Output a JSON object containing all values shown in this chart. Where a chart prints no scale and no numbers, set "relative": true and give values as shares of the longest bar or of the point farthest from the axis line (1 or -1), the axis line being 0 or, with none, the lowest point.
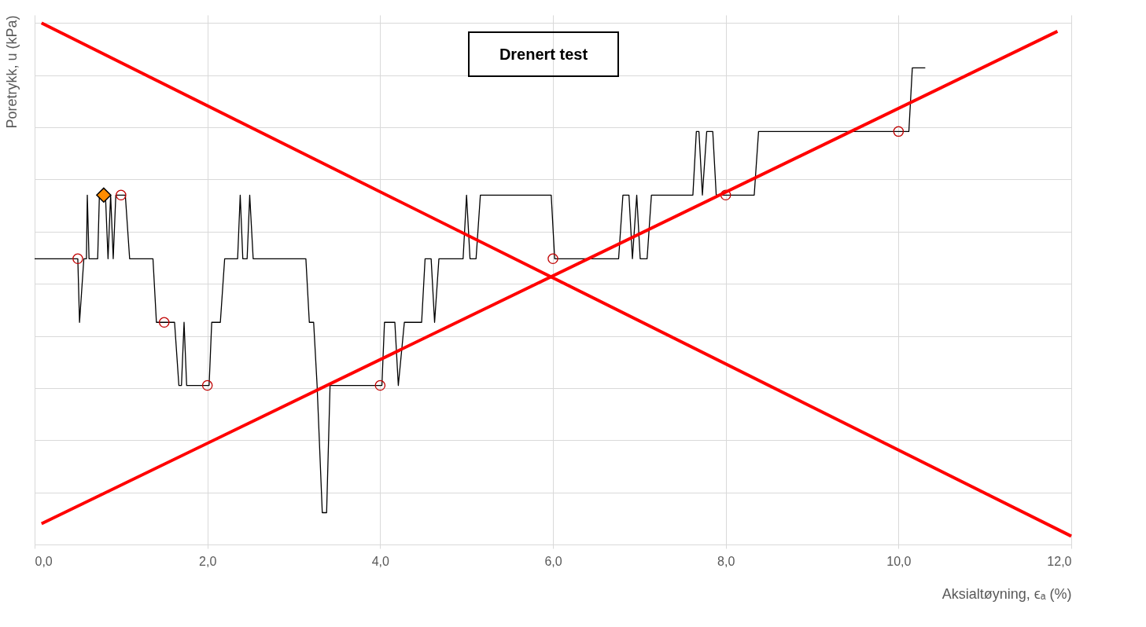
{
  "chart_data": {
    "type": "line",
    "xlabel": "Aksialtøyning, ϵₐ (%)",
    "ylabel": "Poretrykk, u (kPa)",
    "relative": true,
    "xlim": [
      0,
      12
    ],
    "xticks": [
      {
        "value": 0,
        "label": "0,0"
      },
      {
        "value": 2,
        "label": "2,0"
      },
      {
        "value": 4,
        "label": "4,0"
      },
      {
        "value": 6,
        "label": "6,0"
      },
      {
        "value": 8,
        "label": "8,0"
      },
      {
        "value": 10,
        "label": "10,0"
      },
      {
        "value": 12,
        "label": "12,0"
      }
    ],
    "grid": true,
    "annotations": [
      "Drenert test"
    ],
    "series": [
      {
        "color": "#000000",
        "marker": "none",
        "x": [
          0,
          0.5,
          0.52,
          0.57,
          0.6,
          0.61,
          0.63,
          0.73,
          0.75,
          0.82,
          0.85,
          0.88,
          0.91,
          0.94,
          1.05,
          1.1,
          1.37,
          1.41,
          1.62,
          1.67,
          1.7,
          1.73,
          1.76,
          2.02,
          2.05,
          2.15,
          2.2,
          2.35,
          2.38,
          2.41,
          2.46,
          2.49,
          2.53,
          3.14,
          3.18,
          3.23,
          3.27,
          3.33,
          3.38,
          3.42,
          4.02,
          4.05,
          4.17,
          4.21,
          4.28,
          4.48,
          4.52,
          4.59,
          4.63,
          4.68,
          4.96,
          5.0,
          5.04,
          5.11,
          5.16,
          5.98,
          6.02,
          6.76,
          6.81,
          6.88,
          6.92,
          6.97,
          7.01,
          7.09,
          7.14,
          7.62,
          7.66,
          7.69,
          7.73,
          7.78,
          7.85,
          7.89,
          8.33,
          8.38,
          10.12,
          10.16,
          10.31
        ],
        "values": [
          0.548,
          0.548,
          0.426,
          0.548,
          0.548,
          0.67,
          0.548,
          0.548,
          0.67,
          0.67,
          0.548,
          0.67,
          0.548,
          0.67,
          0.67,
          0.548,
          0.548,
          0.426,
          0.426,
          0.305,
          0.305,
          0.426,
          0.305,
          0.305,
          0.426,
          0.426,
          0.548,
          0.548,
          0.67,
          0.548,
          0.548,
          0.67,
          0.548,
          0.548,
          0.426,
          0.426,
          0.305,
          0.061,
          0.061,
          0.305,
          0.305,
          0.426,
          0.426,
          0.305,
          0.426,
          0.426,
          0.548,
          0.548,
          0.426,
          0.548,
          0.548,
          0.67,
          0.548,
          0.548,
          0.67,
          0.67,
          0.548,
          0.548,
          0.67,
          0.67,
          0.548,
          0.67,
          0.548,
          0.548,
          0.67,
          0.67,
          0.792,
          0.792,
          0.67,
          0.792,
          0.792,
          0.67,
          0.67,
          0.792,
          0.792,
          0.914,
          0.914
        ]
      },
      {
        "type": "scatter",
        "color": "#c00000",
        "marker": "circle",
        "x": [
          0.5,
          1,
          1.5,
          2,
          4,
          6,
          8,
          10
        ],
        "values": [
          0.548,
          0.67,
          0.426,
          0.305,
          0.305,
          0.548,
          0.67,
          0.792
        ]
      },
      {
        "type": "scatter",
        "color": "#ff8c00",
        "marker": "diamond",
        "x": [
          0.8
        ],
        "values": [
          0.67
        ]
      },
      {
        "color": "#ff0000",
        "marker": "none",
        "x": [
          0.08,
          12.0
        ],
        "values": [
          1,
          0.016
        ]
      },
      {
        "color": "#ff0000",
        "marker": "none",
        "x": [
          0.08,
          11.84
        ],
        "values": [
          0.04,
          0.984
        ]
      }
    ]
  }
}
